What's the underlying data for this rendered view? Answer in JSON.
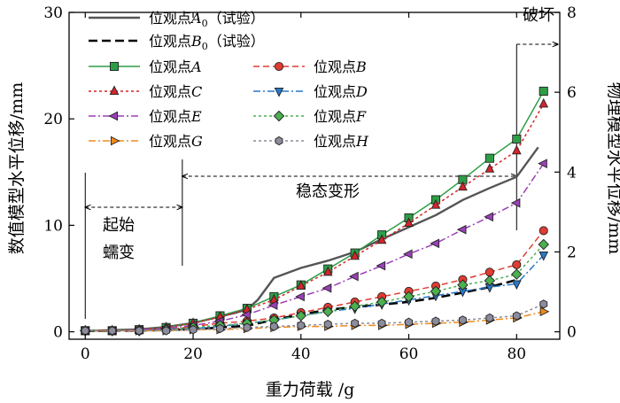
{
  "chart_data": {
    "type": "line",
    "xlabel": "重力荷载 /g",
    "ylabel_left": "数值模型水平位移/mm",
    "ylabel_right": "物理模型水平位移/mm",
    "x_ticks": [
      0,
      20,
      40,
      60,
      80
    ],
    "y_left_ticks": [
      0,
      10,
      20,
      30
    ],
    "y_right_ticks": [
      0,
      2,
      4,
      6,
      8
    ],
    "xlim": [
      -3,
      88
    ],
    "ylim_left": [
      -0.7,
      30
    ],
    "ylim_right": [
      -0.187,
      8
    ],
    "annotations": {
      "creep_line1": "起始",
      "creep_line2": "蠕变",
      "steady": "稳态变形",
      "failure": "破坏"
    },
    "experiment_series": [
      {
        "key": "A0",
        "name": "位观点A0（试验）",
        "label_main": "位观点",
        "label_italic": "A",
        "label_sub": "0",
        "label_tail": "（试验）",
        "axis": "right",
        "color": "#555555",
        "dash": "solid",
        "x": [
          0,
          10,
          15,
          20,
          25,
          28,
          30,
          32,
          35,
          40,
          45,
          50,
          55,
          60,
          65,
          70,
          75,
          80,
          84
        ],
        "values": [
          0.02,
          0.06,
          0.12,
          0.22,
          0.38,
          0.48,
          0.56,
          0.8,
          1.35,
          1.6,
          1.78,
          2.0,
          2.32,
          2.62,
          2.92,
          3.3,
          3.6,
          3.88,
          4.62
        ]
      },
      {
        "key": "B0",
        "name": "位观点B0（试验）",
        "label_main": "位观点",
        "label_italic": "B",
        "label_sub": "0",
        "label_tail": "（试验）",
        "axis": "right",
        "color": "#000000",
        "dash": "long",
        "x": [
          0,
          10,
          20,
          30,
          35,
          40,
          45,
          50,
          55,
          60,
          65,
          70,
          75,
          80
        ],
        "values": [
          0.02,
          0.03,
          0.06,
          0.15,
          0.3,
          0.43,
          0.55,
          0.62,
          0.68,
          0.75,
          0.85,
          0.98,
          1.12,
          1.3
        ]
      }
    ],
    "x": [
      0,
      5,
      10,
      15,
      20,
      25,
      30,
      35,
      40,
      45,
      50,
      55,
      60,
      65,
      70,
      75,
      80,
      85
    ],
    "series": [
      {
        "key": "A",
        "label_main": "位观点",
        "label_italic": "A",
        "color": "#2e9e46",
        "marker": "square",
        "dash": "solid",
        "values": [
          0.1,
          0.1,
          0.2,
          0.4,
          0.8,
          1.5,
          2.2,
          3.3,
          4.4,
          5.9,
          7.4,
          9.1,
          10.7,
          12.4,
          14.3,
          16.3,
          18.1,
          22.6
        ]
      },
      {
        "key": "B",
        "label_main": "位观点",
        "label_italic": "B",
        "color": "#e03c31",
        "marker": "circle",
        "dash": "dash",
        "values": [
          0.1,
          0.1,
          0.1,
          0.2,
          0.5,
          0.8,
          1.0,
          1.3,
          1.8,
          2.3,
          2.8,
          3.3,
          3.8,
          4.3,
          4.9,
          5.6,
          6.3,
          9.5
        ]
      },
      {
        "key": "C",
        "label_main": "位观点",
        "label_italic": "C",
        "color": "#d6242a",
        "marker": "triangle-up",
        "dash": "dot",
        "values": [
          0.1,
          0.1,
          0.2,
          0.4,
          0.8,
          1.4,
          2.1,
          3.0,
          4.3,
          5.6,
          7.1,
          8.6,
          10.2,
          11.9,
          13.6,
          15.3,
          17.0,
          21.4
        ]
      },
      {
        "key": "D",
        "label_main": "位观点",
        "label_italic": "D",
        "color": "#2878c8",
        "marker": "triangle-down",
        "dash": "dashdot",
        "values": [
          0.1,
          0.1,
          0.1,
          0.2,
          0.3,
          0.5,
          0.8,
          1.1,
          1.5,
          1.9,
          2.2,
          2.6,
          3.0,
          3.4,
          3.8,
          4.2,
          4.5,
          7.2
        ]
      },
      {
        "key": "E",
        "label_main": "位观点",
        "label_italic": "E",
        "color": "#9b3fb7",
        "marker": "triangle-left",
        "dash": "dashdot",
        "values": [
          0.1,
          0.1,
          0.2,
          0.3,
          0.6,
          1.0,
          1.6,
          2.5,
          3.3,
          4.1,
          5.2,
          6.2,
          7.3,
          8.3,
          9.6,
          10.8,
          12.1,
          15.8
        ]
      },
      {
        "key": "F",
        "label_main": "位观点",
        "label_italic": "F",
        "color": "#4caf50",
        "marker": "diamond",
        "dash": "dot",
        "values": [
          0.1,
          0.1,
          0.1,
          0.2,
          0.4,
          0.6,
          0.8,
          1.1,
          1.5,
          1.9,
          2.4,
          2.8,
          3.3,
          3.8,
          4.4,
          4.8,
          5.4,
          8.2
        ]
      },
      {
        "key": "G",
        "label_main": "位观点",
        "label_italic": "G",
        "color": "#f08a1c",
        "marker": "triangle-right",
        "dash": "dashdot",
        "values": [
          0.1,
          0.1,
          0.1,
          0.1,
          0.2,
          0.2,
          0.3,
          0.4,
          0.5,
          0.5,
          0.6,
          0.6,
          0.7,
          0.8,
          0.9,
          1.1,
          1.3,
          1.9
        ]
      },
      {
        "key": "H",
        "label_main": "位观点",
        "label_italic": "H",
        "color": "#8c8c9c",
        "marker": "hexagon",
        "dash": "dot",
        "values": [
          0.1,
          0.1,
          0.1,
          0.1,
          0.2,
          0.3,
          0.4,
          0.5,
          0.6,
          0.7,
          0.8,
          0.8,
          0.9,
          1.0,
          1.1,
          1.3,
          1.5,
          2.6
        ]
      }
    ]
  }
}
